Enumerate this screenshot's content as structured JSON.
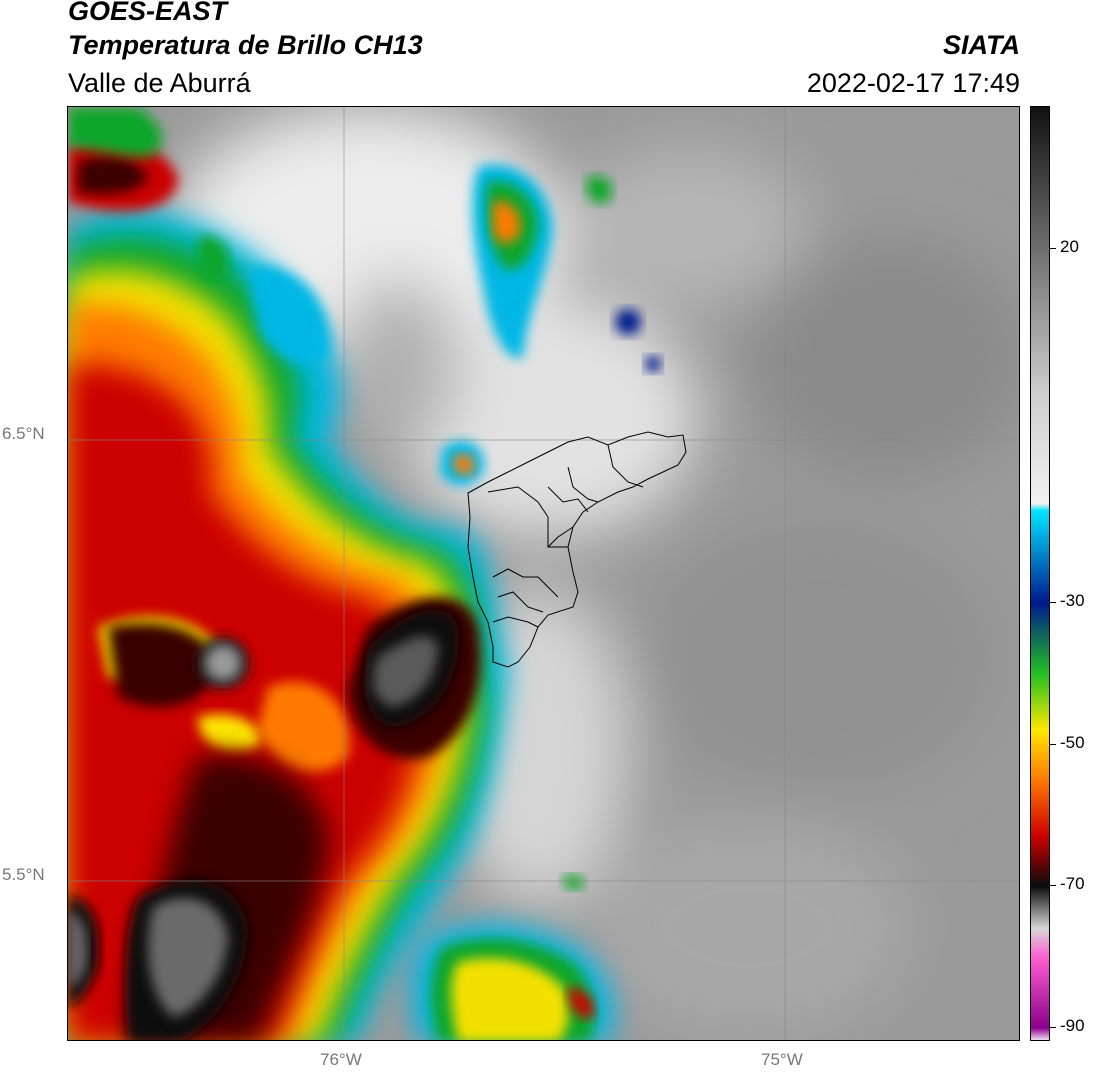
{
  "header": {
    "satellite": "GOES-EAST",
    "product": "Temperatura de Brillo CH13",
    "region": "Valle de Aburrá",
    "agency": "SIATA",
    "datetime": "2022-02-17 17:49"
  },
  "map": {
    "lat_labels": [
      "6.5°N",
      "5.5°N"
    ],
    "lon_labels": [
      "76°W",
      "75°W"
    ],
    "background_gray": "#9a9a9a",
    "municipality_outline_color": "#000000"
  },
  "colorbar": {
    "tick_labels": [
      "20",
      "-30",
      "-50",
      "-70",
      "-90"
    ],
    "tick_values": [
      20,
      -30,
      -50,
      -70,
      -90
    ],
    "range": [
      -92,
      40
    ],
    "stops": [
      {
        "value": 40,
        "color": "#111111"
      },
      {
        "value": 0,
        "color": "#cccccc"
      },
      {
        "value": -16,
        "color": "#f2f2f2"
      },
      {
        "value": -17,
        "color": "#00e5ff"
      },
      {
        "value": -30,
        "color": "#001a8c"
      },
      {
        "value": -40,
        "color": "#22c022"
      },
      {
        "value": -48,
        "color": "#ffe600"
      },
      {
        "value": -55,
        "color": "#ff7a00"
      },
      {
        "value": -63,
        "color": "#cc0000"
      },
      {
        "value": -70,
        "color": "#0a0a0a"
      },
      {
        "value": -76,
        "color": "#d8d8d8"
      },
      {
        "value": -80,
        "color": "#ff5fd0"
      },
      {
        "value": -90,
        "color": "#8b008b"
      },
      {
        "value": -92,
        "color": "#ffffff"
      }
    ]
  }
}
